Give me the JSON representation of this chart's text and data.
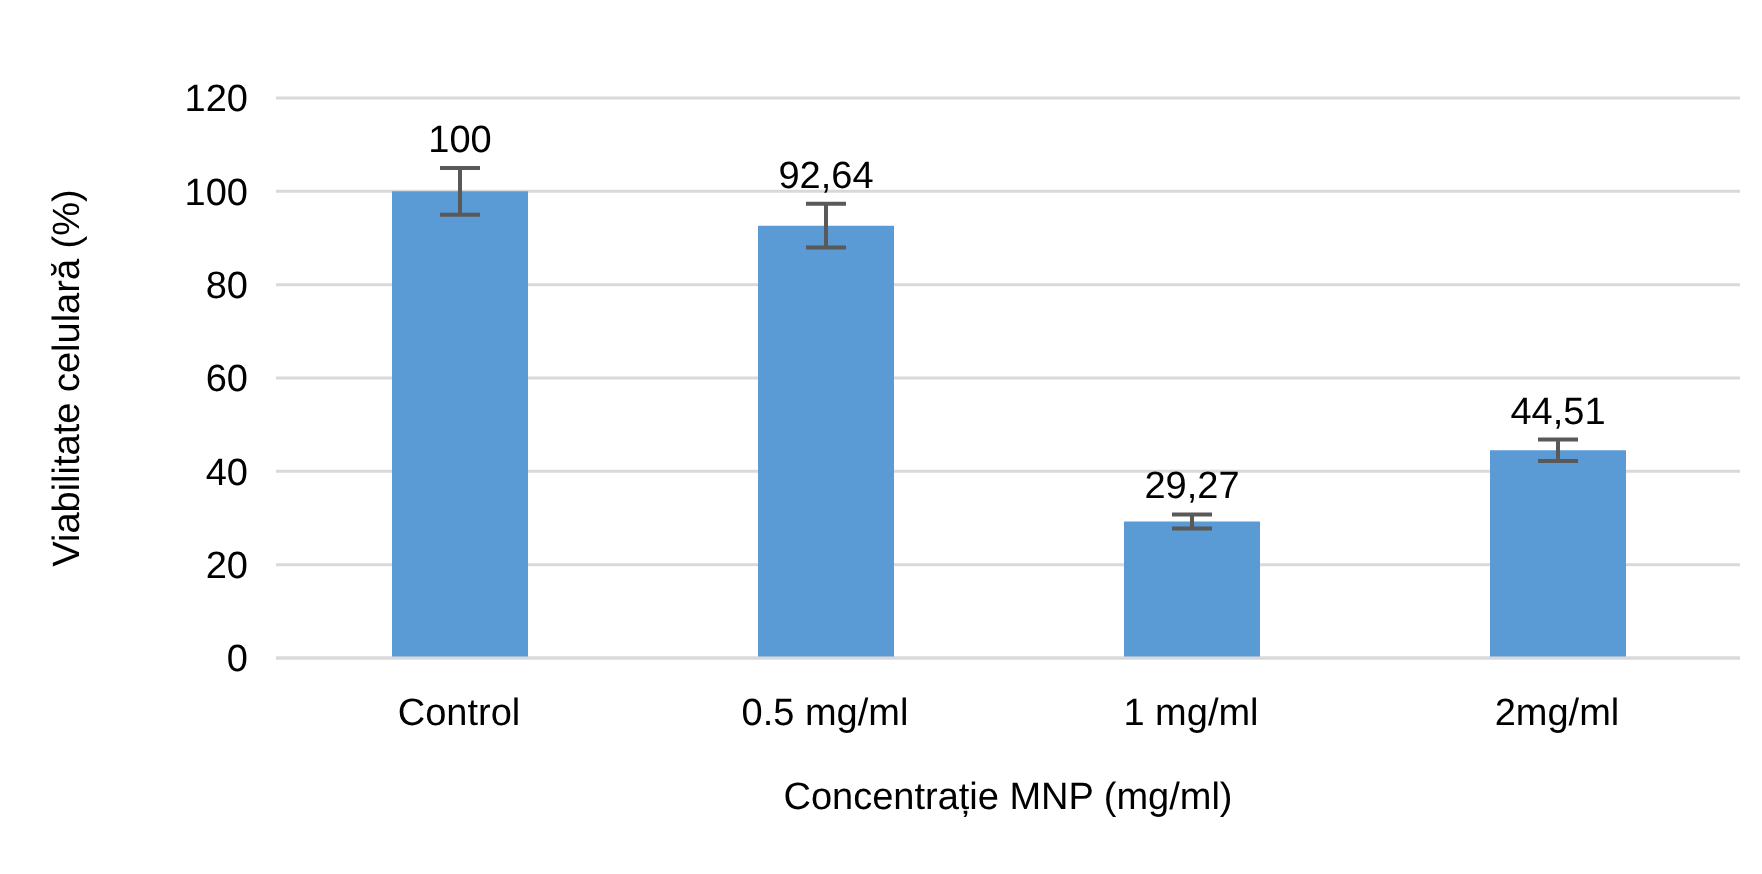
{
  "chart_data": {
    "type": "bar",
    "xlabel": "Concentrație MNP (mg/ml)",
    "ylabel": "Viabilitate celulară (%)",
    "categories": [
      "Control",
      "0.5 mg/ml",
      "1 mg/ml",
      "2mg/ml"
    ],
    "values": [
      100,
      92.64,
      29.27,
      44.51
    ],
    "errors": [
      5,
      4.7,
      1.5,
      2.3
    ],
    "value_labels": [
      "100",
      "92,64",
      "29,27",
      "44,51"
    ],
    "color": "#5b9bd5",
    "ylim": [
      0,
      120
    ],
    "yticks": [
      0,
      20,
      40,
      60,
      80,
      100,
      120
    ],
    "grid": "y"
  }
}
